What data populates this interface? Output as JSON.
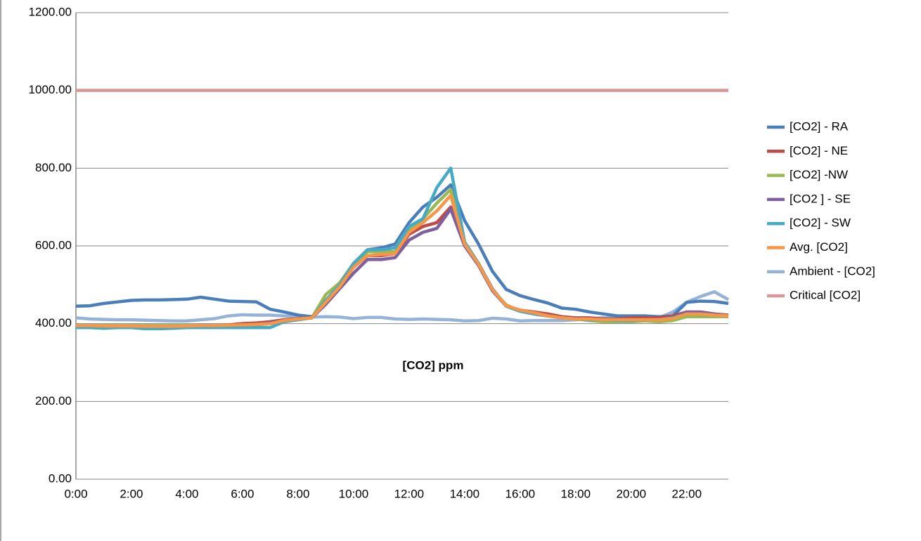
{
  "chart_data": {
    "type": "line",
    "annotation": "[CO2] ppm",
    "categories": [
      "0:00",
      null,
      null,
      null,
      "2:00",
      null,
      null,
      null,
      "4:00",
      null,
      null,
      null,
      "6:00",
      null,
      null,
      null,
      "8:00",
      null,
      null,
      null,
      "10:00",
      null,
      null,
      null,
      "12:00",
      null,
      null,
      null,
      "14:00",
      null,
      null,
      null,
      "16:00",
      null,
      null,
      null,
      "18:00",
      null,
      null,
      null,
      "20:00",
      null,
      null,
      null,
      "22:00",
      null,
      null,
      null
    ],
    "ylim": [
      0,
      1200
    ],
    "yticks": [
      {
        "value": 0,
        "label": "0.00"
      },
      {
        "value": 200,
        "label": "200.00"
      },
      {
        "value": 400,
        "label": "400.00"
      },
      {
        "value": 600,
        "label": "600.00"
      },
      {
        "value": 800,
        "label": "800.00"
      },
      {
        "value": 1000,
        "label": "1000.00"
      },
      {
        "value": 1200,
        "label": "1200.00"
      }
    ],
    "grid": true,
    "legend": "right",
    "series": [
      {
        "name": "[CO2] - RA",
        "color": "#4a7ebb",
        "values": [
          445,
          446,
          452,
          456,
          460,
          461,
          461,
          462,
          463,
          468,
          463,
          458,
          457,
          456,
          437,
          430,
          422,
          418,
          450,
          500,
          555,
          590,
          595,
          605,
          660,
          700,
          725,
          757,
          665,
          605,
          535,
          488,
          472,
          462,
          453,
          440,
          437,
          430,
          425,
          420,
          420,
          420,
          418,
          420,
          455,
          458,
          457,
          452
        ]
      },
      {
        "name": "[CO2] - NE",
        "color": "#be4b48",
        "values": [
          393,
          393,
          393,
          393,
          393,
          393,
          393,
          393,
          393,
          395,
          395,
          397,
          400,
          402,
          405,
          410,
          413,
          415,
          455,
          495,
          545,
          575,
          575,
          580,
          630,
          650,
          660,
          700,
          605,
          555,
          490,
          445,
          435,
          430,
          425,
          418,
          415,
          415,
          412,
          412,
          415,
          415,
          415,
          420,
          430,
          430,
          425,
          422
        ]
      },
      {
        "name": "[CO2] -NW",
        "color": "#98b954",
        "values": [
          395,
          395,
          395,
          395,
          395,
          395,
          395,
          395,
          395,
          395,
          395,
          395,
          395,
          397,
          400,
          408,
          412,
          415,
          475,
          505,
          555,
          585,
          585,
          585,
          640,
          670,
          710,
          745,
          605,
          555,
          488,
          448,
          432,
          425,
          420,
          415,
          412,
          408,
          405,
          405,
          405,
          407,
          405,
          408,
          418,
          418,
          418,
          418
        ]
      },
      {
        "name": "[CO2 ] - SE",
        "color": "#7d60a0",
        "values": [
          392,
          392,
          392,
          392,
          392,
          392,
          392,
          392,
          392,
          393,
          393,
          395,
          397,
          398,
          402,
          408,
          412,
          415,
          450,
          490,
          530,
          565,
          565,
          570,
          615,
          635,
          645,
          695,
          600,
          550,
          485,
          445,
          432,
          425,
          420,
          415,
          413,
          412,
          410,
          410,
          410,
          410,
          410,
          415,
          430,
          430,
          425,
          420
        ]
      },
      {
        "name": "[CO2] - SW",
        "color": "#46aac5",
        "values": [
          390,
          390,
          388,
          390,
          390,
          387,
          387,
          388,
          390,
          390,
          390,
          390,
          390,
          390,
          390,
          405,
          410,
          415,
          460,
          500,
          555,
          590,
          590,
          595,
          650,
          670,
          750,
          800,
          610,
          555,
          490,
          445,
          432,
          425,
          420,
          415,
          412,
          410,
          410,
          408,
          408,
          410,
          410,
          415,
          425,
          425,
          422,
          420
        ]
      },
      {
        "name": "Avg. [CO2]",
        "color": "#f79646",
        "values": [
          395,
          395,
          394,
          394,
          394,
          393,
          393,
          393,
          394,
          395,
          395,
          396,
          397,
          398,
          400,
          408,
          412,
          415,
          455,
          495,
          545,
          575,
          578,
          580,
          635,
          660,
          690,
          730,
          605,
          553,
          488,
          446,
          435,
          428,
          420,
          415,
          412,
          412,
          410,
          410,
          410,
          410,
          410,
          413,
          425,
          425,
          422,
          420
        ]
      },
      {
        "name": "Ambient - [CO2]",
        "color": "#95b3d7",
        "values": [
          415,
          412,
          411,
          410,
          410,
          409,
          408,
          407,
          407,
          410,
          413,
          420,
          423,
          422,
          422,
          420,
          418,
          417,
          418,
          417,
          413,
          416,
          416,
          412,
          411,
          412,
          411,
          410,
          407,
          408,
          414,
          412,
          407,
          408,
          408,
          408,
          410,
          413,
          415,
          415,
          418,
          420,
          415,
          430,
          455,
          470,
          482,
          462
        ]
      },
      {
        "name": "Critical [CO2]",
        "color": "#d99694",
        "values": [
          1000,
          1000,
          1000,
          1000,
          1000,
          1000,
          1000,
          1000,
          1000,
          1000,
          1000,
          1000,
          1000,
          1000,
          1000,
          1000,
          1000,
          1000,
          1000,
          1000,
          1000,
          1000,
          1000,
          1000,
          1000,
          1000,
          1000,
          1000,
          1000,
          1000,
          1000,
          1000,
          1000,
          1000,
          1000,
          1000,
          1000,
          1000,
          1000,
          1000,
          1000,
          1000,
          1000,
          1000,
          1000,
          1000,
          1000,
          1000
        ]
      }
    ]
  }
}
